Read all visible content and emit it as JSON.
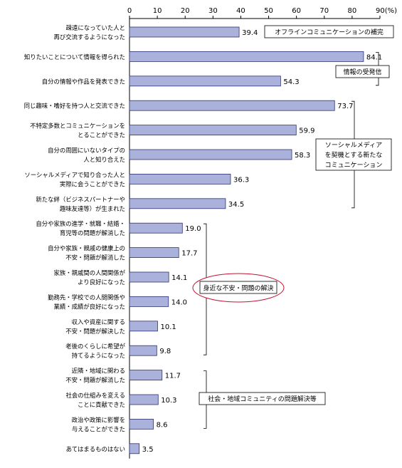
{
  "chart_data": {
    "type": "bar",
    "orientation": "horizontal",
    "xlim": [
      0,
      90
    ],
    "ticks": [
      0,
      10,
      20,
      30,
      40,
      50,
      60,
      70,
      80,
      90
    ],
    "tick_labels": [
      "0",
      "10",
      "20",
      "30",
      "40",
      "50",
      "60",
      "70",
      "80",
      "90(%)"
    ],
    "bar_color": "#aab2dc",
    "bar_edge": "#2e3470",
    "categories": [
      [
        "疎遠になっていた人と",
        "再び交流するようになった"
      ],
      [
        "知りたいことについて情報を得られた"
      ],
      [
        "自分の情報や作品を発表できた"
      ],
      [
        "同じ趣味・嗜好を持つ人と交流できた"
      ],
      [
        "不特定多数とコミュニケーションを",
        "とることができた"
      ],
      [
        "自分の周囲にいないタイプの",
        "人と知り合えた"
      ],
      [
        "ソーシャルメディアで知り合った人と",
        "実際に会うことができた"
      ],
      [
        "新たな絆（ビジネスパートナーや",
        "趣味友達等）が生まれた"
      ],
      [
        "自分や家族の進学・就職・結婚・",
        "育児等の問題が解消した"
      ],
      [
        "自分や家族・親戚の健康上の",
        "不安・問題が解消した"
      ],
      [
        "家族・親戚間の人間関係が",
        "より良好になった"
      ],
      [
        "勤務先・学校での人間関係や",
        "業績・成績が良好になった"
      ],
      [
        "収入や資産に関する",
        "不安・問題が解決した"
      ],
      [
        "老後のくらしに希望が",
        "持てるようになった"
      ],
      [
        "近隣・地域に関わる",
        "不安・問題が解消した"
      ],
      [
        "社会の仕組みを変える",
        "ことに貢献できた"
      ],
      [
        "政治や政策に影響を",
        "与えることができた"
      ],
      [
        "あてはまるものはない"
      ]
    ],
    "values": [
      39.4,
      84.1,
      54.3,
      73.7,
      59.9,
      58.3,
      36.3,
      34.5,
      19.0,
      17.7,
      14.1,
      14.0,
      10.1,
      9.8,
      11.7,
      10.3,
      8.6,
      3.5
    ],
    "value_labels": [
      "39.4",
      "84.1",
      "54.3",
      "73.7",
      "59.9",
      "58.3",
      "36.3",
      "34.5",
      "19.0",
      "17.7",
      "14.1",
      "14.0",
      "10.1",
      "9.8",
      "11.7",
      "10.3",
      "8.6",
      "3.5"
    ],
    "annotations": [
      {
        "lines": [
          "オフラインコミュニケーションの補完"
        ],
        "rows": [
          0
        ],
        "style": "box"
      },
      {
        "lines": [
          "情報の受発信"
        ],
        "rows": [
          1,
          2
        ],
        "style": "box-bracket"
      },
      {
        "lines": [
          "ソーシャルメディア",
          "を契機とする新たな",
          "コミュニケーション"
        ],
        "rows": [
          3,
          7
        ],
        "style": "box-bracket"
      },
      {
        "lines": [
          "身近な不安・問題の解決"
        ],
        "rows": [
          8,
          13
        ],
        "style": "ellipse-bracket",
        "highlight_color": "#c8102e"
      },
      {
        "lines": [
          "社会・地域コミュニティの問題解決等"
        ],
        "rows": [
          14,
          16
        ],
        "style": "box-bracket"
      }
    ]
  }
}
